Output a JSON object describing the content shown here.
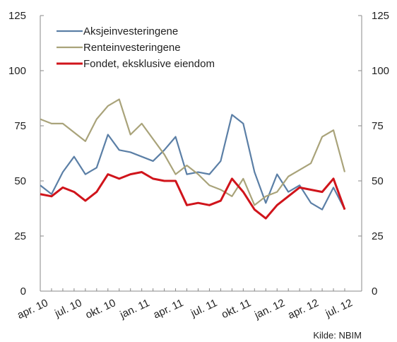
{
  "chart_data": {
    "type": "line",
    "categories": [
      "apr. 10",
      null,
      null,
      "jul. 10",
      null,
      null,
      "okt. 10",
      null,
      null,
      "jan. 11",
      null,
      null,
      "apr. 11",
      null,
      null,
      "jul. 11",
      null,
      null,
      "okt. 11",
      null,
      null,
      "jan. 12",
      null,
      null,
      "apr. 12",
      null,
      null,
      "jul. 12"
    ],
    "series": [
      {
        "name": "Aksjeinvesteringene",
        "color": "#5b7fa6",
        "values": [
          48,
          44,
          54,
          61,
          53,
          56,
          71,
          64,
          63,
          61,
          59,
          64,
          70,
          53,
          54,
          53,
          59,
          80,
          76,
          54,
          40,
          53,
          45,
          48,
          40,
          37,
          47,
          37
        ]
      },
      {
        "name": "Renteinvesteringene",
        "color": "#a9a37a",
        "values": [
          78,
          76,
          76,
          72,
          68,
          78,
          84,
          87,
          71,
          76,
          69,
          62,
          53,
          57,
          53,
          48,
          46,
          43,
          51,
          39,
          43,
          45,
          52,
          55,
          58,
          70,
          73,
          54
        ]
      },
      {
        "name": "Fondet, eksklusive eiendom",
        "color": "#d0141b",
        "values": [
          44,
          43,
          47,
          45,
          41,
          45,
          53,
          51,
          53,
          54,
          51,
          50,
          50,
          39,
          40,
          39,
          41,
          51,
          45,
          37,
          33,
          39,
          43,
          47,
          46,
          45,
          51,
          37
        ]
      }
    ],
    "ylim": [
      0,
      125
    ],
    "yticks": [
      0,
      25,
      50,
      75,
      100,
      125
    ],
    "y2lim": [
      0,
      125
    ],
    "y2ticks": [
      0,
      25,
      50,
      75,
      100,
      125
    ],
    "source": "Kilde: NBIM"
  }
}
